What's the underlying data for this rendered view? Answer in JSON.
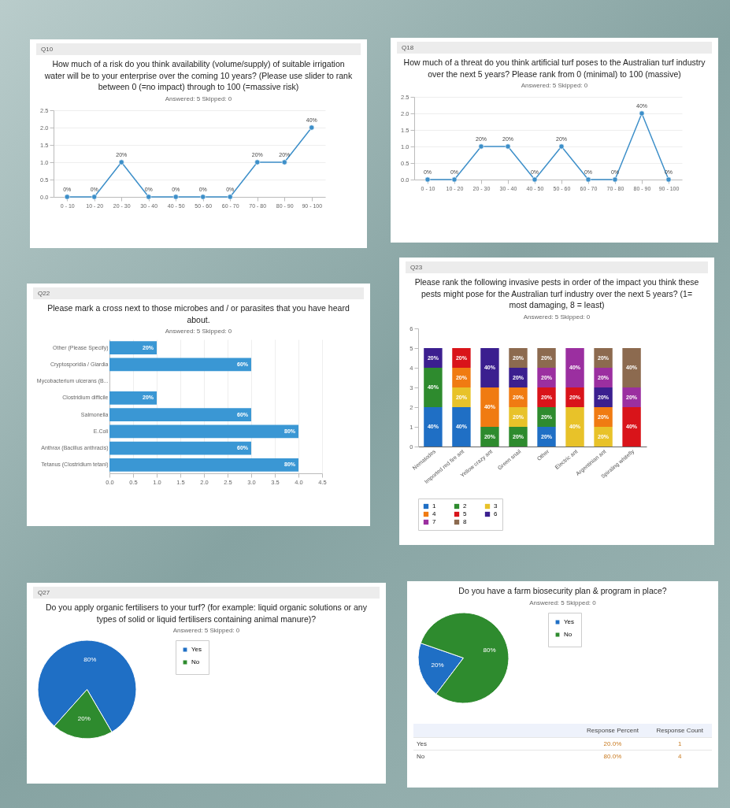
{
  "chart_data": [
    {
      "type": "line",
      "title": "How much of a risk do you think availability (volume/supply) of suitable irrigation water will be to your enterprise over the coming 10 years? (Please use slider to rank between 0 (=no impact) through to 100 (=massive risk)",
      "subtitle": "Answered: 5   Skipped: 0",
      "annotations": [
        "Q10",
        {
          "text": "0%",
          "x": "0 - 10",
          "y": 0
        },
        {
          "text": "0%",
          "x": "10 - 20",
          "y": 0
        },
        {
          "text": "20%",
          "x": "20 - 30",
          "y": 1
        },
        {
          "text": "0%",
          "x": "30 - 40",
          "y": 0
        },
        {
          "text": "0%",
          "x": "40 - 50",
          "y": 0
        },
        {
          "text": "0%",
          "x": "50 - 60",
          "y": 0
        },
        {
          "text": "0%",
          "x": "60 - 70",
          "y": 0
        },
        {
          "text": "20%",
          "x": "70 - 80",
          "y": 1
        },
        {
          "text": "20%",
          "x": "80 - 90",
          "y": 1
        },
        {
          "text": "40%",
          "x": "90 - 100",
          "y": 2
        }
      ],
      "categories": [
        "0 - 10",
        "10 - 20",
        "20 - 30",
        "30 - 40",
        "40 - 50",
        "50 - 60",
        "60 - 70",
        "70 - 80",
        "80 - 90",
        "90 - 100"
      ],
      "values": [
        0,
        0,
        1,
        0,
        0,
        0,
        0,
        1,
        1,
        2
      ],
      "color": "#3d8fc9",
      "marker": "circle",
      "ylim": [
        0,
        2.5
      ],
      "yticks": [
        {
          "value": 0,
          "label": "0.0"
        },
        {
          "value": 0.5,
          "label": "0.5"
        },
        {
          "value": 1,
          "label": "1.0"
        },
        {
          "value": 1.5,
          "label": "1.5"
        },
        {
          "value": 2,
          "label": "2.0"
        },
        {
          "value": 2.5,
          "label": "2.5"
        }
      ],
      "grid": "y"
    },
    {
      "type": "line",
      "title": "How much of a threat do you think artificial turf poses to the Australian turf industry over the next 5 years? Please rank from 0 (minimal) to 100 (massive)",
      "subtitle": "Answered: 5   Skipped: 0",
      "annotations": [
        "Q18",
        {
          "text": "0%",
          "x": "0 - 10",
          "y": 0
        },
        {
          "text": "0%",
          "x": "10 - 20",
          "y": 0
        },
        {
          "text": "20%",
          "x": "20 - 30",
          "y": 1
        },
        {
          "text": "20%",
          "x": "30 - 40",
          "y": 1
        },
        {
          "text": "0%",
          "x": "40 - 50",
          "y": 0
        },
        {
          "text": "20%",
          "x": "50 - 60",
          "y": 1
        },
        {
          "text": "0%",
          "x": "60 - 70",
          "y": 0
        },
        {
          "text": "0%",
          "x": "70 - 80",
          "y": 0
        },
        {
          "text": "40%",
          "x": "80 - 90",
          "y": 2
        },
        {
          "text": "0%",
          "x": "90 - 100",
          "y": 0
        }
      ],
      "categories": [
        "0 - 10",
        "10 - 20",
        "20 - 30",
        "30 - 40",
        "40 - 50",
        "50 - 60",
        "60 - 70",
        "70 - 80",
        "80 - 90",
        "90 - 100"
      ],
      "values": [
        0,
        0,
        1,
        1,
        0,
        1,
        0,
        0,
        2,
        0
      ],
      "color": "#3d8fc9",
      "marker": "circle",
      "ylim": [
        0,
        2.5
      ],
      "yticks": [
        {
          "value": 0,
          "label": "0.0"
        },
        {
          "value": 0.5,
          "label": "0.5"
        },
        {
          "value": 1,
          "label": "1.0"
        },
        {
          "value": 1.5,
          "label": "1.5"
        },
        {
          "value": 2,
          "label": "2.0"
        },
        {
          "value": 2.5,
          "label": "2.5"
        }
      ],
      "grid": "y"
    },
    {
      "type": "bar",
      "orientation": "horizontal",
      "title": "Please mark a cross next to those microbes and / or parasites that you have heard about.",
      "subtitle": "Answered: 5   Skipped: 0",
      "annotations": [
        "Q22",
        {
          "text": "20%",
          "x": 1,
          "y": "Other (Please Specify)"
        },
        {
          "text": "60%",
          "x": 3,
          "y": "Cryptosporidia / Giardia"
        },
        {
          "text": "20%",
          "x": 1,
          "y": "Clostridium difficile"
        },
        {
          "text": "60%",
          "x": 3,
          "y": "Salmonella"
        },
        {
          "text": "80%",
          "x": 4,
          "y": "E.Coli"
        },
        {
          "text": "60%",
          "x": 3,
          "y": "Anthrax (Bacillus anthracis)"
        },
        {
          "text": "80%",
          "x": 4,
          "y": "Tetanus (Clostridium tetani)"
        }
      ],
      "categories": [
        "Other (Please Specify)",
        "Cryptosporidia / Giardia",
        "Mycobacterium ulcerans (B...",
        "Clostridium difficile",
        "Salmonella",
        "E.Coli",
        "Anthrax (Bacillus anthracis)",
        "Tetanus (Clostridium tetani)"
      ],
      "values": [
        1,
        3,
        0,
        1,
        3,
        4,
        3,
        4
      ],
      "color": "#3a97d4",
      "xlim": [
        0,
        4.5
      ],
      "xticks": [
        {
          "value": 0,
          "label": "0.0"
        },
        {
          "value": 0.5,
          "label": "0.5"
        },
        {
          "value": 1,
          "label": "1.0"
        },
        {
          "value": 1.5,
          "label": "1.5"
        },
        {
          "value": 2,
          "label": "2.0"
        },
        {
          "value": 2.5,
          "label": "2.5"
        },
        {
          "value": 3,
          "label": "3.0"
        },
        {
          "value": 3.5,
          "label": "3.5"
        },
        {
          "value": 4,
          "label": "4.0"
        },
        {
          "value": 4.5,
          "label": "4.5"
        }
      ],
      "grid": "x"
    },
    {
      "type": "bar",
      "stacked": true,
      "title": "Please rank the following invasive pests in order of the impact you think these pests might pose for the Australian turf industry over the next 5 years? (1= most damaging, 8 = least)",
      "subtitle": "Answered: 5   Skipped: 0",
      "annotations": [
        "Q23",
        {
          "text": "40%",
          "x": "Nematodes",
          "y": 1
        },
        {
          "text": "40%",
          "x": "Nematodes",
          "y": 3
        },
        {
          "text": "20%",
          "x": "Nematodes",
          "y": 4.5
        },
        {
          "text": "40%",
          "x": "Imported red fire ant",
          "y": 1
        },
        {
          "text": "20%",
          "x": "Imported red fire ant",
          "y": 2.5
        },
        {
          "text": "20%",
          "x": "Imported red fire ant",
          "y": 3.5
        },
        {
          "text": "20%",
          "x": "Imported red fire ant",
          "y": 4.5
        },
        {
          "text": "20%",
          "x": "Yellow crazy ant",
          "y": 0.5
        },
        {
          "text": "40%",
          "x": "Yellow crazy ant",
          "y": 2
        },
        {
          "text": "40%",
          "x": "Yellow crazy ant",
          "y": 4
        },
        {
          "text": "20%",
          "x": "Green snail",
          "y": 0.5
        },
        {
          "text": "20%",
          "x": "Green snail",
          "y": 1.5
        },
        {
          "text": "20%",
          "x": "Green snail",
          "y": 2.5
        },
        {
          "text": "20%",
          "x": "Green snail",
          "y": 3.5
        },
        {
          "text": "20%",
          "x": "Green snail",
          "y": 4.5
        },
        {
          "text": "20%",
          "x": "Other",
          "y": 0.5
        },
        {
          "text": "20%",
          "x": "Other",
          "y": 1.5
        },
        {
          "text": "20%",
          "x": "Other",
          "y": 2.5
        },
        {
          "text": "20%",
          "x": "Other",
          "y": 3.5
        },
        {
          "text": "20%",
          "x": "Other",
          "y": 4.5
        },
        {
          "text": "40%",
          "x": "Electric ant",
          "y": 1
        },
        {
          "text": "20%",
          "x": "Electric ant",
          "y": 2.5
        },
        {
          "text": "40%",
          "x": "Electric ant",
          "y": 4
        },
        {
          "text": "20%",
          "x": "Argentinian ant",
          "y": 0.5
        },
        {
          "text": "20%",
          "x": "Argentinian ant",
          "y": 1.5
        },
        {
          "text": "20%",
          "x": "Argentinian ant",
          "y": 2.5
        },
        {
          "text": "20%",
          "x": "Argentinian ant",
          "y": 3.5
        },
        {
          "text": "20%",
          "x": "Argentinian ant",
          "y": 4.5
        },
        {
          "text": "40%",
          "x": "Spiraling whitefly",
          "y": 1
        },
        {
          "text": "20%",
          "x": "Spiraling whitefly",
          "y": 2.5
        },
        {
          "text": "40%",
          "x": "Spiraling whitefly",
          "y": 4
        }
      ],
      "categories": [
        "Nematodes",
        "Imported red fire ant",
        "Yellow crazy ant",
        "Green snail",
        "Other",
        "Electric ant",
        "Argentinian ant",
        "Spiraling whitefly"
      ],
      "series": [
        {
          "name": "1",
          "color": "#1f6fc5",
          "values": [
            2,
            2,
            null,
            null,
            1,
            null,
            null,
            null
          ]
        },
        {
          "name": "2",
          "color": "#2e8b2e",
          "values": [
            2,
            null,
            1,
            1,
            1,
            null,
            null,
            null
          ]
        },
        {
          "name": "3",
          "color": "#e8c229",
          "values": [
            null,
            1,
            null,
            1,
            null,
            2,
            1,
            null
          ]
        },
        {
          "name": "4",
          "color": "#f07b12",
          "values": [
            null,
            1,
            2,
            1,
            null,
            null,
            1,
            null
          ]
        },
        {
          "name": "5",
          "color": "#d9141a",
          "values": [
            null,
            1,
            null,
            null,
            1,
            1,
            null,
            2
          ]
        },
        {
          "name": "6",
          "color": "#3b1f8f",
          "values": [
            1,
            null,
            2,
            1,
            null,
            null,
            1,
            null
          ]
        },
        {
          "name": "7",
          "color": "#9b2fa0",
          "values": [
            null,
            null,
            null,
            null,
            1,
            2,
            1,
            1
          ]
        },
        {
          "name": "8",
          "color": "#8c6a4f",
          "values": [
            null,
            null,
            null,
            1,
            1,
            null,
            1,
            2
          ]
        }
      ],
      "ylim": [
        0,
        6
      ],
      "yticks": [
        0,
        1,
        2,
        3,
        4,
        5,
        6
      ],
      "legend": "bottom"
    },
    {
      "type": "pie",
      "title": "Do you apply organic fertilisers to your turf? (for example: liquid organic solutions or any types of solid or liquid fertilisers containing animal manure)?",
      "subtitle": "Answered: 5   Skipped: 0",
      "annotations": [
        "Q27"
      ],
      "categories": [
        "Yes",
        "No"
      ],
      "values": [
        80,
        20
      ],
      "value_labels": [
        "80%",
        "20%"
      ],
      "colors": [
        "#1f6fc5",
        "#2e8b2e"
      ],
      "legend": "right"
    },
    {
      "type": "pie",
      "title": "Do you have a farm biosecurity plan & program in place?",
      "subtitle": "Answered: 5   Skipped: 0",
      "annotations": [
        "Response Percent",
        "Response Count",
        "20.0%",
        "1",
        "80.0%",
        "4"
      ],
      "categories": [
        "Yes",
        "No"
      ],
      "values": [
        20,
        80
      ],
      "value_labels": [
        "20%",
        "80%"
      ],
      "colors": [
        "#1f6fc5",
        "#2e8b2e"
      ],
      "legend": "right"
    }
  ]
}
